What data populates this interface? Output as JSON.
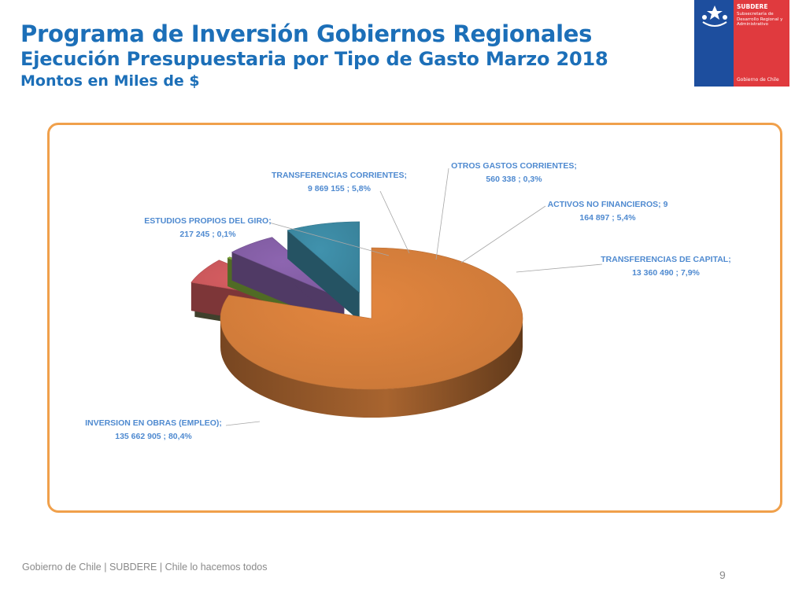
{
  "header": {
    "title": "Programa de Inversión Gobiernos Regionales",
    "subtitle": "Ejecución Presupuestaria por Tipo de Gasto Marzo 2018",
    "units": "Montos en Miles de $"
  },
  "logo": {
    "brand": "SUBDERE",
    "subtext": "Subsecretaría de Desarrollo Regional y Administrativo",
    "government": "Gobierno de Chile",
    "colors": {
      "blue": "#1d4e9e",
      "red": "#e03a3e"
    }
  },
  "chart_data": {
    "type": "pie",
    "style": "3d-exploded",
    "categories": [
      "INVERSION EN OBRAS (EMPLEO)",
      "ESTUDIOS PROPIOS DEL GIRO",
      "TRANSFERENCIAS CORRIENTES",
      "OTROS GASTOS CORRIENTES",
      "ACTIVOS NO FINANCIEROS",
      "TRANSFERENCIAS DE CAPITAL"
    ],
    "values": [
      135662905,
      217245,
      9869155,
      560338,
      9164897,
      13360490
    ],
    "percentages": [
      80.4,
      0.1,
      5.8,
      0.3,
      5.4,
      7.9
    ],
    "colors": [
      "#d8803c",
      "#6a6a4a",
      "#d05a5e",
      "#86b23e",
      "#8660a8",
      "#3d8ba5"
    ],
    "data_labels": [
      {
        "name": "INVERSION EN OBRAS (EMPLEO);",
        "value": "135 662 905 ; 80,4%"
      },
      {
        "name": "ESTUDIOS PROPIOS DEL GIRO;",
        "value": "217 245 ; 0,1%"
      },
      {
        "name": "TRANSFERENCIAS CORRIENTES;",
        "value": "9 869 155 ; 5,8%"
      },
      {
        "name": "OTROS GASTOS CORRIENTES;",
        "value": "560 338 ; 0,3%"
      },
      {
        "name": "ACTIVOS NO FINANCIEROS;  9",
        "value": "164 897 ; 5,4%"
      },
      {
        "name": "TRANSFERENCIAS DE CAPITAL;",
        "value": "13 360 490 ; 7,9%"
      }
    ]
  },
  "footer": {
    "text": "Gobierno de Chile | SUBDERE | Chile lo hacemos todos",
    "page": "9"
  }
}
